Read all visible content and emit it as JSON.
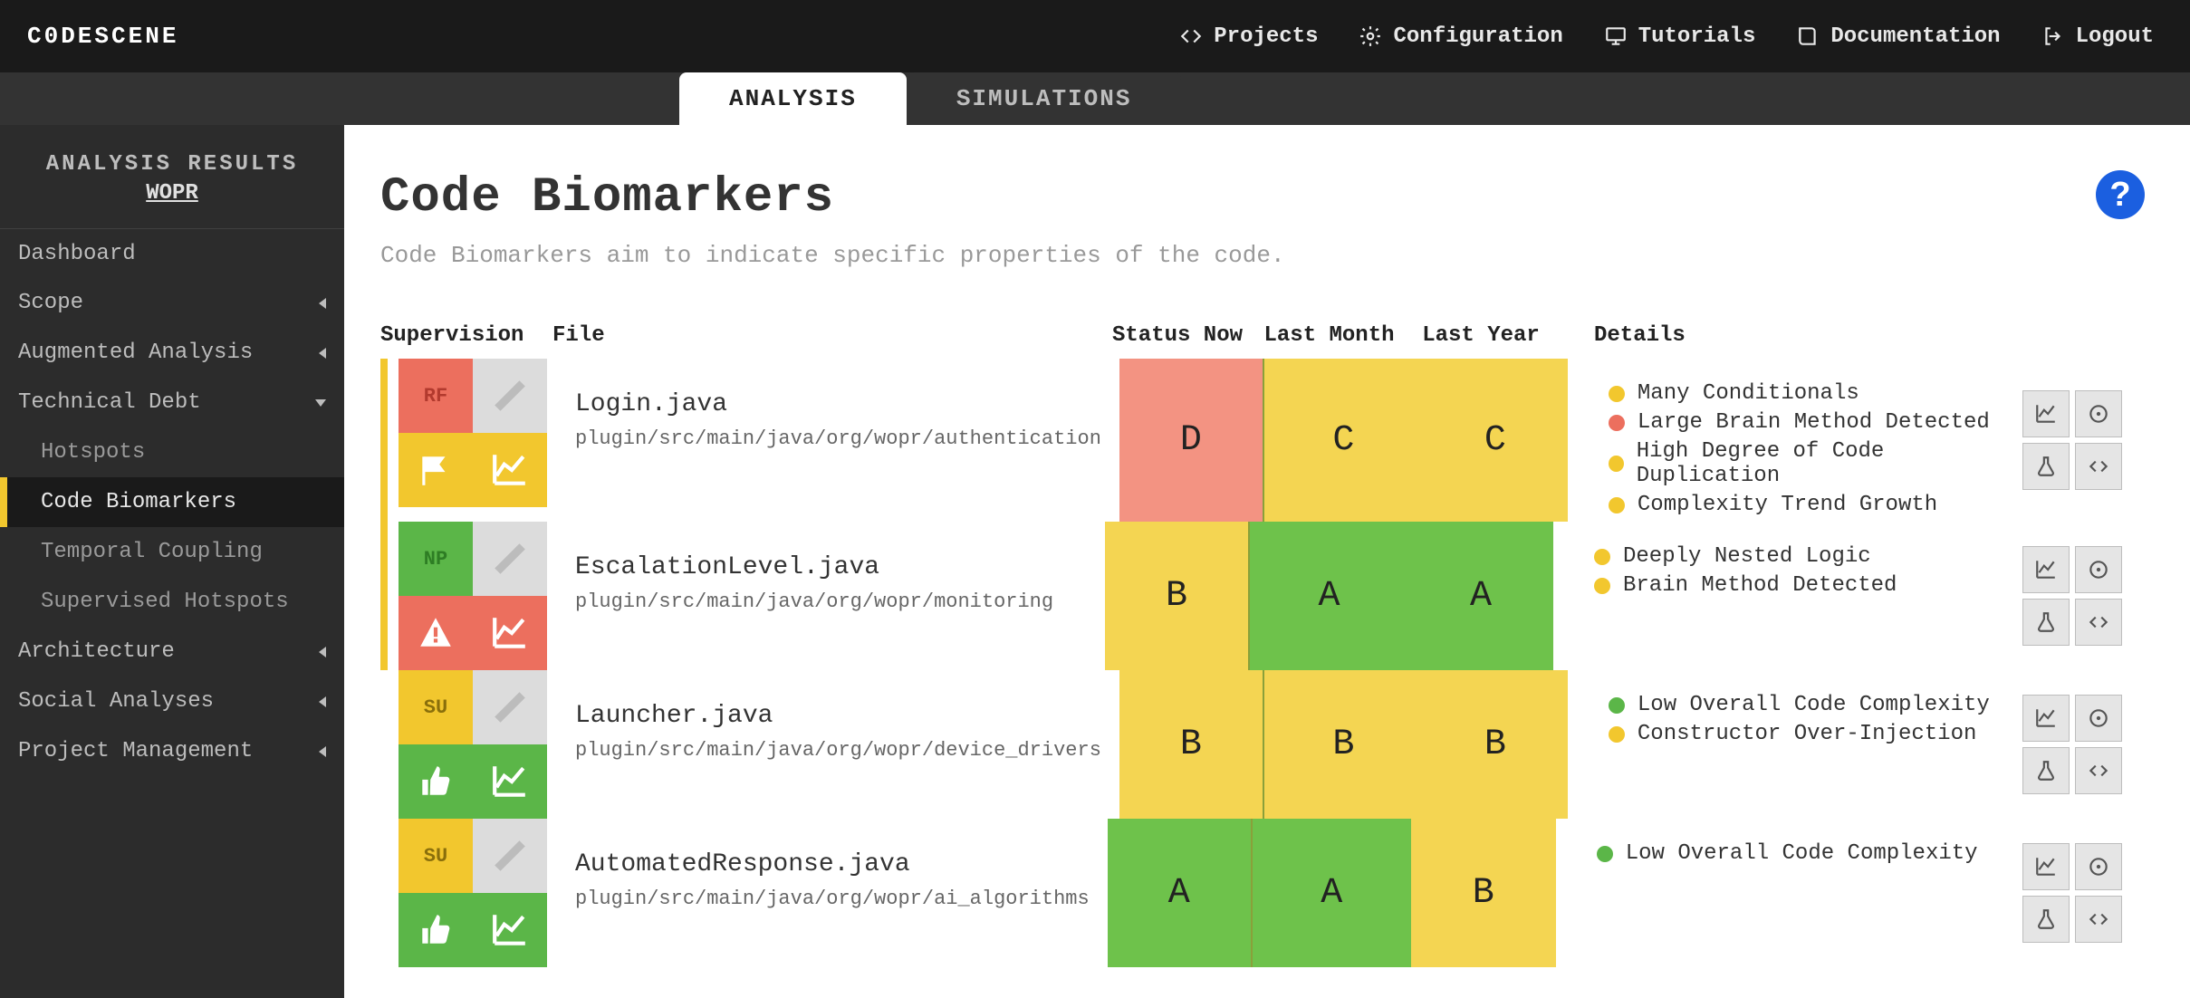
{
  "brand": "C0DESCENE",
  "nav": {
    "projects": "Projects",
    "configuration": "Configuration",
    "tutorials": "Tutorials",
    "documentation": "Documentation",
    "logout": "Logout"
  },
  "tabs": {
    "analysis": "ANALYSIS",
    "simulations": "SIMULATIONS"
  },
  "sidebar": {
    "header_title": "ANALYSIS RESULTS",
    "project": "WOPR",
    "items": [
      {
        "label": "Dashboard",
        "kind": "link"
      },
      {
        "label": "Scope",
        "kind": "expand"
      },
      {
        "label": "Augmented Analysis",
        "kind": "expand"
      },
      {
        "label": "Technical Debt",
        "kind": "expanded"
      },
      {
        "label": "Hotspots",
        "kind": "child"
      },
      {
        "label": "Code Biomarkers",
        "kind": "child-selected"
      },
      {
        "label": "Temporal Coupling",
        "kind": "child"
      },
      {
        "label": "Supervised Hotspots",
        "kind": "child"
      },
      {
        "label": "Architecture",
        "kind": "expand"
      },
      {
        "label": "Social Analyses",
        "kind": "expand"
      },
      {
        "label": "Project Management",
        "kind": "expand"
      }
    ]
  },
  "page": {
    "title": "Code Biomarkers",
    "subtitle": "Code Biomarkers aim to indicate specific properties of the code."
  },
  "columns": {
    "supervision": "Supervision",
    "file": "File",
    "now": "Status Now",
    "month": "Last Month",
    "year": "Last Year",
    "details": "Details"
  },
  "status_colors": {
    "A": "#6ec24b",
    "B": "#f4d552",
    "C": "#f4d552",
    "D": "#f39382"
  },
  "rows": [
    {
      "stripe": true,
      "sup": {
        "badge": "RF",
        "badge_bg": "red",
        "badge_txt": "red-txt",
        "icon2": "flag",
        "icon2_bg": "yellow",
        "icon3": "chart",
        "icon3_bg": "yellow"
      },
      "file": "Login.java",
      "path": "plugin/src/main/java/org/wopr/authentication",
      "now": "D",
      "now_bg": "st-red",
      "month": "C",
      "month_bg": "st-yellow",
      "year": "C",
      "year_bg": "st-yellow",
      "details": [
        {
          "dot": "dot-yellow",
          "text": "Many Conditionals"
        },
        {
          "dot": "dot-red",
          "text": "Large Brain Method Detected"
        },
        {
          "dot": "dot-yellow",
          "text": "High Degree of Code Duplication"
        },
        {
          "dot": "dot-yellow",
          "text": "Complexity Trend Growth"
        }
      ]
    },
    {
      "stripe": true,
      "sup": {
        "badge": "NP",
        "badge_bg": "green",
        "badge_txt": "green-txt",
        "icon2": "warn",
        "icon2_bg": "red",
        "icon3": "chart",
        "icon3_bg": "red"
      },
      "file": "EscalationLevel.java",
      "path": "plugin/src/main/java/org/wopr/monitoring",
      "now": "B",
      "now_bg": "st-yellow",
      "month": "A",
      "month_bg": "st-green",
      "year": "A",
      "year_bg": "st-green",
      "details": [
        {
          "dot": "dot-yellow",
          "text": "Deeply Nested Logic"
        },
        {
          "dot": "dot-yellow",
          "text": "Brain Method Detected"
        }
      ]
    },
    {
      "stripe": false,
      "sup": {
        "badge": "SU",
        "badge_bg": "yellow",
        "badge_txt": "yellow-txt",
        "icon2": "thumb",
        "icon2_bg": "green",
        "icon3": "chart",
        "icon3_bg": "green"
      },
      "file": "Launcher.java",
      "path": "plugin/src/main/java/org/wopr/device_drivers",
      "now": "B",
      "now_bg": "st-yellow",
      "month": "B",
      "month_bg": "st-yellow",
      "year": "B",
      "year_bg": "st-yellow",
      "details": [
        {
          "dot": "dot-green",
          "text": "Low Overall Code Complexity"
        },
        {
          "dot": "dot-yellow",
          "text": "Constructor Over-Injection"
        }
      ]
    },
    {
      "stripe": false,
      "sup": {
        "badge": "SU",
        "badge_bg": "yellow",
        "badge_txt": "yellow-txt",
        "icon2": "thumb",
        "icon2_bg": "green",
        "icon3": "chart",
        "icon3_bg": "green"
      },
      "file": "AutomatedResponse.java",
      "path": "plugin/src/main/java/org/wopr/ai_algorithms",
      "now": "A",
      "now_bg": "st-green",
      "month": "A",
      "month_bg": "st-green",
      "year": "B",
      "year_bg": "st-yellow",
      "details": [
        {
          "dot": "dot-green",
          "text": "Low Overall Code Complexity"
        }
      ]
    }
  ]
}
